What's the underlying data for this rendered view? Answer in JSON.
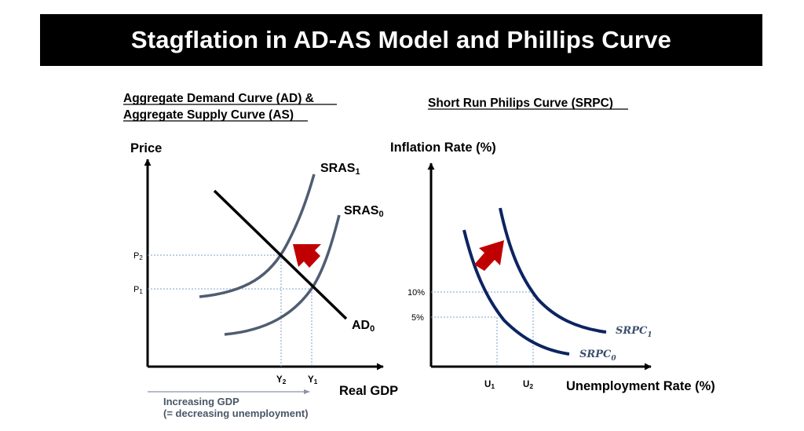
{
  "title": "Stagflation in AD-AS Model and Phillips Curve",
  "left_panel": {
    "heading_line1": "Aggregate Demand Curve (AD) &",
    "heading_line2": "Aggregate Supply Curve (AS)",
    "y_axis_label": "Price",
    "x_axis_label": "Real GDP",
    "curves": {
      "sras1": "SRAS",
      "sras1_sub": "1",
      "sras0": "SRAS",
      "sras0_sub": "0",
      "ad": "AD",
      "ad_sub": "0"
    },
    "y_ticks": {
      "p2": "P",
      "p2_sub": "2",
      "p1": "P",
      "p1_sub": "1"
    },
    "x_ticks": {
      "y2": "Y",
      "y2_sub": "2",
      "y1": "Y",
      "y1_sub": "1"
    },
    "note_line1": "Increasing GDP",
    "note_line2": "(= decreasing unemployment)"
  },
  "right_panel": {
    "heading": "Short Run Philips Curve (SRPC)",
    "y_axis_label": "Inflation Rate (%)",
    "x_axis_label": "Unemployment Rate (%)",
    "y_ticks": {
      "high": "10%",
      "low": "5%"
    },
    "x_ticks": {
      "u1": "U",
      "u1_sub": "1",
      "u2": "U",
      "u2_sub": "2"
    },
    "curves": {
      "srpc1": "SRPC",
      "srpc1_sub": "1",
      "srpc0": "SRPC",
      "srpc0_sub": "0"
    }
  },
  "colors": {
    "title_bg": "#000000",
    "curve_gray": "#4f5d72",
    "curve_navy": "#0c2461",
    "arrow_red": "#c00000",
    "guide_blue": "#7f9fd0"
  }
}
